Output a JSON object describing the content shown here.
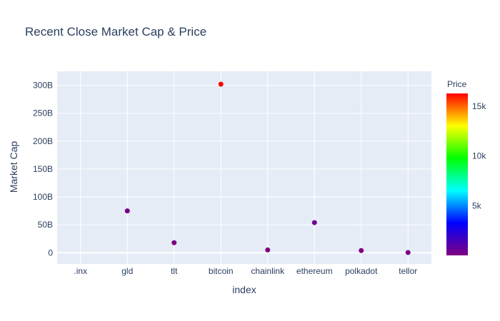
{
  "chart_data": {
    "type": "scatter",
    "title": "Recent Close Market Cap & Price",
    "xlabel": "index",
    "ylabel": "Market Cap",
    "categories": [
      ".inx",
      "gld",
      "tlt",
      "bitcoin",
      "chainlink",
      "ethereum",
      "polkadot",
      "tellor"
    ],
    "ylim": [
      -20,
      325
    ],
    "y_ticks": [
      0,
      50,
      100,
      150,
      200,
      250,
      300
    ],
    "y_tick_labels": [
      "0",
      "50B",
      "100B",
      "150B",
      "200B",
      "250B",
      "300B"
    ],
    "points": [
      {
        "x": "gld",
        "y": 75,
        "price": 170
      },
      {
        "x": "tlt",
        "y": 18,
        "price": 160
      },
      {
        "x": "bitcoin",
        "y": 302,
        "price": 16300
      },
      {
        "x": "chainlink",
        "y": 5,
        "price": 10
      },
      {
        "x": "ethereum",
        "y": 54,
        "price": 470
      },
      {
        "x": "polkadot",
        "y": 4,
        "price": 5
      },
      {
        "x": "tellor",
        "y": 0.5,
        "price": 30
      }
    ],
    "grid": true,
    "colorbar": {
      "title": "Price",
      "range": [
        0,
        16300
      ],
      "ticks": [
        5000,
        10000,
        15000
      ],
      "tick_labels": [
        "5k",
        "10k",
        "15k"
      ],
      "colorscale": [
        "#800080",
        "#0000ff",
        "#00ffff",
        "#00ff00",
        "#ffff00",
        "#ff0000"
      ]
    }
  },
  "colors": {
    "plot_bg": "#e5ecf6",
    "grid": "#ffffff",
    "text": "#2a3f5f"
  }
}
